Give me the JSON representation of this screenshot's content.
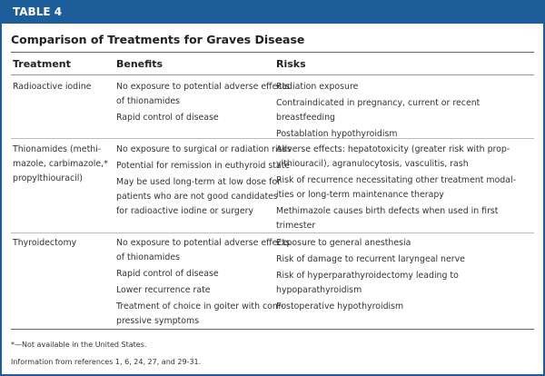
{
  "label": "TABLE 4",
  "title": "Comparison of Treatments for Graves Disease",
  "headers": [
    "Treatment",
    "Benefits",
    "Risks"
  ],
  "rows": [
    {
      "treatment": [
        "Radioactive iodine"
      ],
      "benefits": [
        [
          "No exposure to potential adverse effects",
          "of thionamides"
        ],
        [
          "Rapid control of disease"
        ]
      ],
      "risks": [
        [
          "Radiation exposure"
        ],
        [
          "Contraindicated in pregnancy, current or recent",
          "breastfeeding"
        ],
        [
          "Postablation hypothyroidism"
        ]
      ]
    },
    {
      "treatment": [
        "Thionamides (methi-",
        "mazole, carbimazole,*",
        "propylthiouracil)"
      ],
      "benefits": [
        [
          "No exposure to surgical or radiation risks"
        ],
        [
          "Potential for remission in euthyroid state"
        ],
        [
          "May be used long-term at low dose for",
          "patients who are not good candidates",
          "for radioactive iodine or surgery"
        ]
      ],
      "risks": [
        [
          "Adverse effects: hepatotoxicity (greater risk with prop-",
          "ylthiouracil), agranulocytosis, vasculitis, rash"
        ],
        [
          "Risk of recurrence necessitating other treatment modal-",
          "ities or long-term maintenance therapy"
        ],
        [
          "Methimazole causes birth defects when used in first",
          "trimester"
        ]
      ]
    },
    {
      "treatment": [
        "Thyroidectomy"
      ],
      "benefits": [
        [
          "No exposure to potential adverse effects",
          "of thionamides"
        ],
        [
          "Rapid control of disease"
        ],
        [
          "Lower recurrence rate"
        ],
        [
          "Treatment of choice in goiter with com-",
          "pressive symptoms"
        ]
      ],
      "risks": [
        [
          "Exposure to general anesthesia"
        ],
        [
          "Risk of damage to recurrent laryngeal nerve"
        ],
        [
          "Risk of hyperparathyroidectomy leading to",
          "hypoparathyroidism"
        ],
        [
          "Postoperative hypothyroidism"
        ]
      ]
    }
  ],
  "footnotes": [
    "*—Not available in the United States.",
    "Information from references 1, 6, 24, 27, and 29-31."
  ],
  "colors": {
    "accent": "#1c5d9a"
  }
}
